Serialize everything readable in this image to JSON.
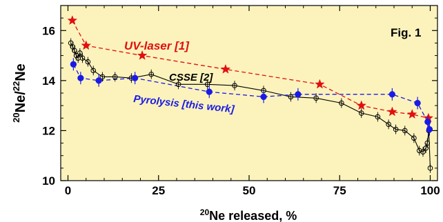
{
  "chart_data": {
    "type": "scatter",
    "xlabel_sup": "20",
    "xlabel_text": "Ne released, %",
    "ylabel_sup1": "20",
    "ylabel_mid": "Ne/",
    "ylabel_sup2": "22",
    "ylabel_end": "Ne",
    "xlim": [
      -2,
      102
    ],
    "ylim": [
      10,
      17
    ],
    "xticks": [
      0,
      25,
      50,
      75,
      100
    ],
    "yticks": [
      10,
      12,
      14,
      16
    ],
    "background": "#fcf3bc",
    "annotations": {
      "figure_label": "Fig. 1",
      "uv": "UV-laser [1]",
      "csse": "CSSE [2]",
      "pyrolysis": "Pyrolysis [this work]"
    },
    "series": [
      {
        "label": "UV-laser [1]",
        "color": "#e01010",
        "marker": "star",
        "linestyle": "dashed",
        "points": [
          [
            1.2,
            16.4
          ],
          [
            5.0,
            15.4
          ],
          [
            20.5,
            15.0
          ],
          [
            43.5,
            14.45
          ],
          [
            69.5,
            13.85
          ],
          [
            81.0,
            13.0
          ],
          [
            89.5,
            12.75
          ],
          [
            95.0,
            12.65
          ],
          [
            99.5,
            12.5
          ]
        ]
      },
      {
        "label": "CSSE [2]",
        "color": "#000000",
        "marker": "open-circle",
        "linestyle": "solid",
        "points": [
          [
            0.8,
            15.5
          ],
          [
            1.3,
            15.35
          ],
          [
            1.8,
            15.2
          ],
          [
            2.3,
            15.0
          ],
          [
            2.8,
            14.9
          ],
          [
            3.3,
            15.1
          ],
          [
            4.0,
            14.9
          ],
          [
            5.5,
            14.75
          ],
          [
            7.0,
            14.4
          ],
          [
            9.5,
            14.15
          ],
          [
            13.0,
            14.15
          ],
          [
            17.5,
            14.1
          ],
          [
            23.0,
            14.25
          ],
          [
            30.5,
            13.85
          ],
          [
            38.5,
            13.85
          ],
          [
            46.0,
            13.8
          ],
          [
            54.0,
            13.6
          ],
          [
            61.5,
            13.35
          ],
          [
            68.5,
            13.3
          ],
          [
            75.5,
            13.1
          ],
          [
            81.0,
            12.7
          ],
          [
            85.5,
            12.55
          ],
          [
            88.5,
            12.25
          ],
          [
            90.5,
            12.05
          ],
          [
            93.0,
            12.0
          ],
          [
            95.5,
            11.7
          ],
          [
            97.0,
            11.2
          ],
          [
            98.0,
            11.15
          ],
          [
            98.8,
            11.3
          ],
          [
            99.2,
            11.5
          ],
          [
            99.6,
            12.0
          ],
          [
            100.0,
            10.5
          ]
        ]
      },
      {
        "label": "Pyrolysis [this work]",
        "color": "#1a1ae6",
        "marker": "filled-circle",
        "linestyle": "dashed",
        "points": [
          [
            1.5,
            14.65
          ],
          [
            3.5,
            14.1
          ],
          [
            8.5,
            14.0
          ],
          [
            18.5,
            14.1
          ],
          [
            39.0,
            13.55
          ],
          [
            54.0,
            13.35
          ],
          [
            63.5,
            13.45
          ],
          [
            89.5,
            13.45
          ],
          [
            96.5,
            13.1
          ],
          [
            99.3,
            12.35
          ],
          [
            99.8,
            12.05
          ]
        ]
      }
    ]
  }
}
